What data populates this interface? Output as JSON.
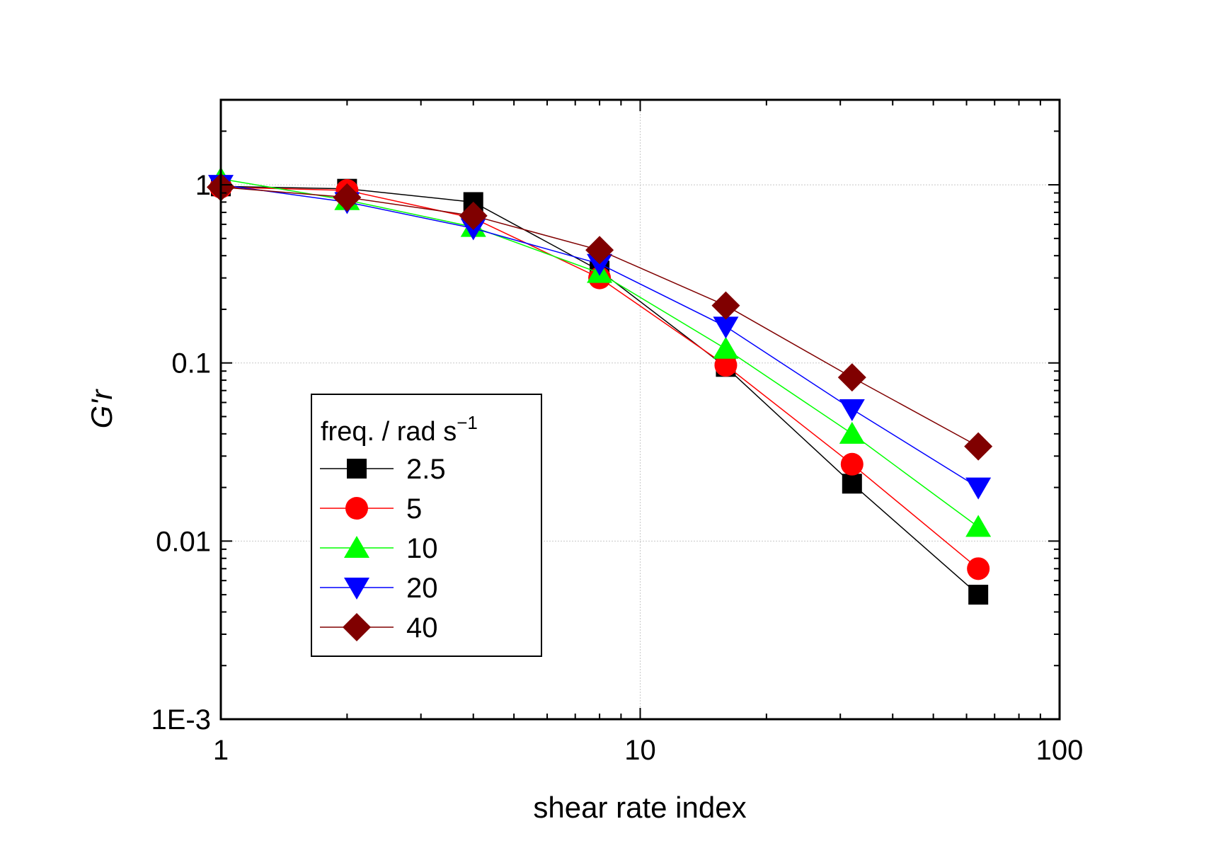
{
  "chart_data": {
    "type": "scatter",
    "xlabel": "shear rate index",
    "ylabel": "G'r",
    "xscale": "log",
    "yscale": "log",
    "xlim": [
      1,
      100
    ],
    "ylim": [
      0.001,
      3
    ],
    "x_ticks": [
      {
        "value": 1,
        "label": "1"
      },
      {
        "value": 10,
        "label": "10"
      },
      {
        "value": 100,
        "label": "100"
      }
    ],
    "y_ticks": [
      {
        "value": 0.001,
        "label": "1E-3"
      },
      {
        "value": 0.01,
        "label": "0.01"
      },
      {
        "value": 0.1,
        "label": "0.1"
      },
      {
        "value": 1,
        "label": "1"
      }
    ],
    "grid": true,
    "legend": {
      "placement": "lower-left",
      "title": "freq. / rad s",
      "title_superscript": "−1"
    },
    "series": [
      {
        "name": "2.5",
        "marker": "square",
        "color": "#000000",
        "x": [
          1,
          2,
          4,
          8,
          16,
          32,
          64
        ],
        "y": [
          0.98,
          0.95,
          0.8,
          0.33,
          0.095,
          0.021,
          0.005
        ]
      },
      {
        "name": "5",
        "marker": "circle",
        "color": "#ff0000",
        "x": [
          1,
          2,
          4,
          8,
          16,
          32,
          64
        ],
        "y": [
          0.97,
          0.93,
          0.65,
          0.3,
          0.097,
          0.027,
          0.007
        ]
      },
      {
        "name": "10",
        "marker": "triangle-up",
        "color": "#00ff00",
        "x": [
          1,
          2,
          4,
          8,
          16,
          32,
          64
        ],
        "y": [
          1.08,
          0.82,
          0.58,
          0.32,
          0.12,
          0.04,
          0.012
        ]
      },
      {
        "name": "20",
        "marker": "triangle-down",
        "color": "#0000ff",
        "x": [
          1,
          2,
          4,
          8,
          16,
          32,
          64
        ],
        "y": [
          1.0,
          0.8,
          0.57,
          0.36,
          0.16,
          0.055,
          0.02
        ]
      },
      {
        "name": "40",
        "marker": "diamond",
        "color": "#800000",
        "x": [
          1,
          2,
          4,
          8,
          16,
          32,
          64
        ],
        "y": [
          0.97,
          0.85,
          0.67,
          0.43,
          0.21,
          0.083,
          0.034
        ]
      }
    ]
  }
}
